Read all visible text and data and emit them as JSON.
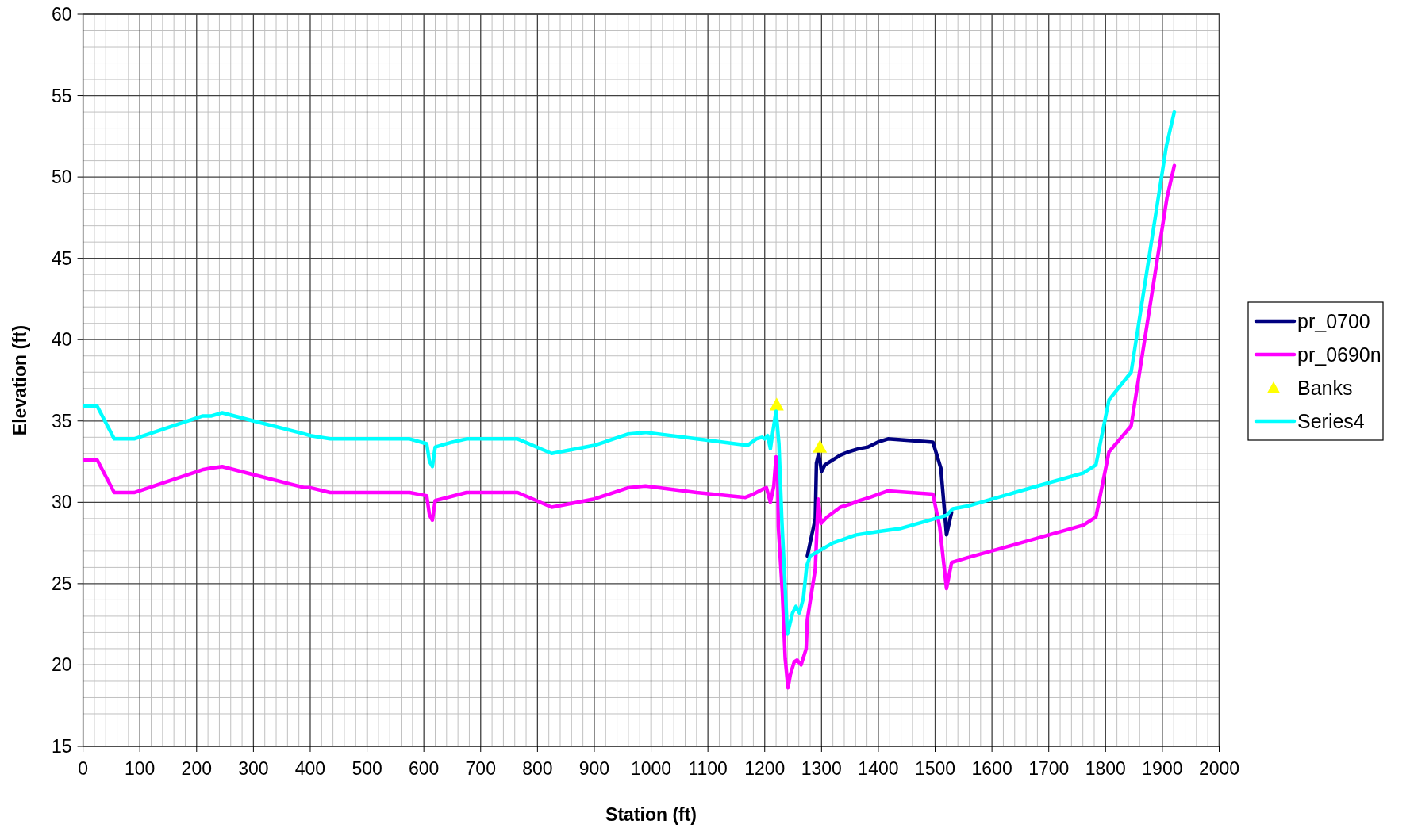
{
  "chart_data": {
    "type": "line",
    "xlabel": "Station (ft)",
    "ylabel": "Elevation (ft)",
    "xlim": [
      0,
      2000
    ],
    "xticks": [
      0,
      100,
      200,
      300,
      400,
      500,
      600,
      700,
      800,
      900,
      1000,
      1100,
      1200,
      1300,
      1400,
      1500,
      1600,
      1700,
      1800,
      1900,
      2000
    ],
    "ylim": [
      15,
      60
    ],
    "yticks": [
      15,
      20,
      25,
      30,
      35,
      40,
      45,
      50,
      55,
      60
    ],
    "grid": true,
    "legend": "right",
    "marker": "none",
    "line_style": "solid",
    "series": [
      {
        "name": "pr_0700",
        "color": "#000080",
        "x": [
          1275,
          1289,
          1291,
          1295,
          1300,
          1306,
          1333,
          1347,
          1366,
          1382,
          1399,
          1417,
          1496,
          1510,
          1520,
          1529
        ],
        "values": [
          26.7,
          29.0,
          32.4,
          33.0,
          31.9,
          32.3,
          32.9,
          33.1,
          33.3,
          33.4,
          33.7,
          33.9,
          33.7,
          32.1,
          28.0,
          29.4
        ]
      },
      {
        "name": "pr_0690n",
        "color": "#ff00ff",
        "x": [
          0,
          25,
          55,
          90,
          210,
          225,
          245,
          300,
          390,
          400,
          435,
          575,
          605,
          610,
          615,
          620,
          675,
          765,
          825,
          900,
          960,
          990,
          1080,
          1166,
          1180,
          1196,
          1203,
          1210,
          1216,
          1220,
          1223,
          1224,
          1231,
          1236,
          1241,
          1245,
          1252,
          1257,
          1264,
          1273,
          1275,
          1289,
          1294,
          1299,
          1310,
          1333,
          1352,
          1366,
          1385,
          1417,
          1496,
          1508,
          1520,
          1529,
          1557,
          1640,
          1761,
          1783,
          1806,
          1845,
          1908,
          1921
        ],
        "values": [
          32.6,
          32.6,
          30.6,
          30.6,
          32.0,
          32.1,
          32.2,
          31.7,
          30.9,
          30.9,
          30.6,
          30.6,
          30.4,
          29.2,
          28.9,
          30.1,
          30.6,
          30.6,
          29.7,
          30.2,
          30.9,
          31.0,
          30.6,
          30.3,
          30.5,
          30.8,
          30.9,
          30.0,
          31.0,
          32.8,
          31.6,
          28.5,
          24.5,
          20.4,
          18.6,
          19.4,
          20.2,
          20.3,
          20.0,
          21.0,
          22.8,
          25.9,
          30.2,
          28.7,
          29.1,
          29.7,
          29.9,
          30.1,
          30.3,
          30.7,
          30.5,
          28.5,
          24.7,
          26.3,
          26.6,
          27.4,
          28.6,
          29.1,
          33.1,
          34.7,
          48.7,
          50.7
        ]
      },
      {
        "name": "Banks",
        "type": "scatter",
        "marker": "triangle",
        "color": "#ffff00",
        "x": [
          1221,
          1297
        ],
        "values": [
          36.0,
          33.4
        ]
      },
      {
        "name": "Series4",
        "color": "#00ffff",
        "x": [
          0,
          25,
          55,
          90,
          210,
          225,
          245,
          300,
          390,
          400,
          435,
          575,
          605,
          610,
          615,
          620,
          650,
          675,
          765,
          825,
          900,
          960,
          990,
          1080,
          1170,
          1185,
          1195,
          1200,
          1205,
          1210,
          1215,
          1220,
          1225,
          1230,
          1240,
          1249,
          1255,
          1261,
          1268,
          1274,
          1280,
          1320,
          1361,
          1399,
          1440,
          1500,
          1520,
          1531,
          1561,
          1640,
          1700,
          1761,
          1783,
          1806,
          1845,
          1907,
          1921
        ],
        "values": [
          35.9,
          35.9,
          33.9,
          33.9,
          35.3,
          35.3,
          35.5,
          35.0,
          34.2,
          34.1,
          33.9,
          33.9,
          33.6,
          32.5,
          32.2,
          33.4,
          33.7,
          33.9,
          33.9,
          33.0,
          33.5,
          34.2,
          34.3,
          33.9,
          33.5,
          33.9,
          34.0,
          33.9,
          34.1,
          33.3,
          34.5,
          35.6,
          33.6,
          29.0,
          21.9,
          23.2,
          23.6,
          23.2,
          24.1,
          26.1,
          26.7,
          27.5,
          28.0,
          28.2,
          28.4,
          29.0,
          29.2,
          29.6,
          29.8,
          30.6,
          31.2,
          31.8,
          32.3,
          36.3,
          38.0,
          51.9,
          54.0
        ]
      }
    ]
  }
}
